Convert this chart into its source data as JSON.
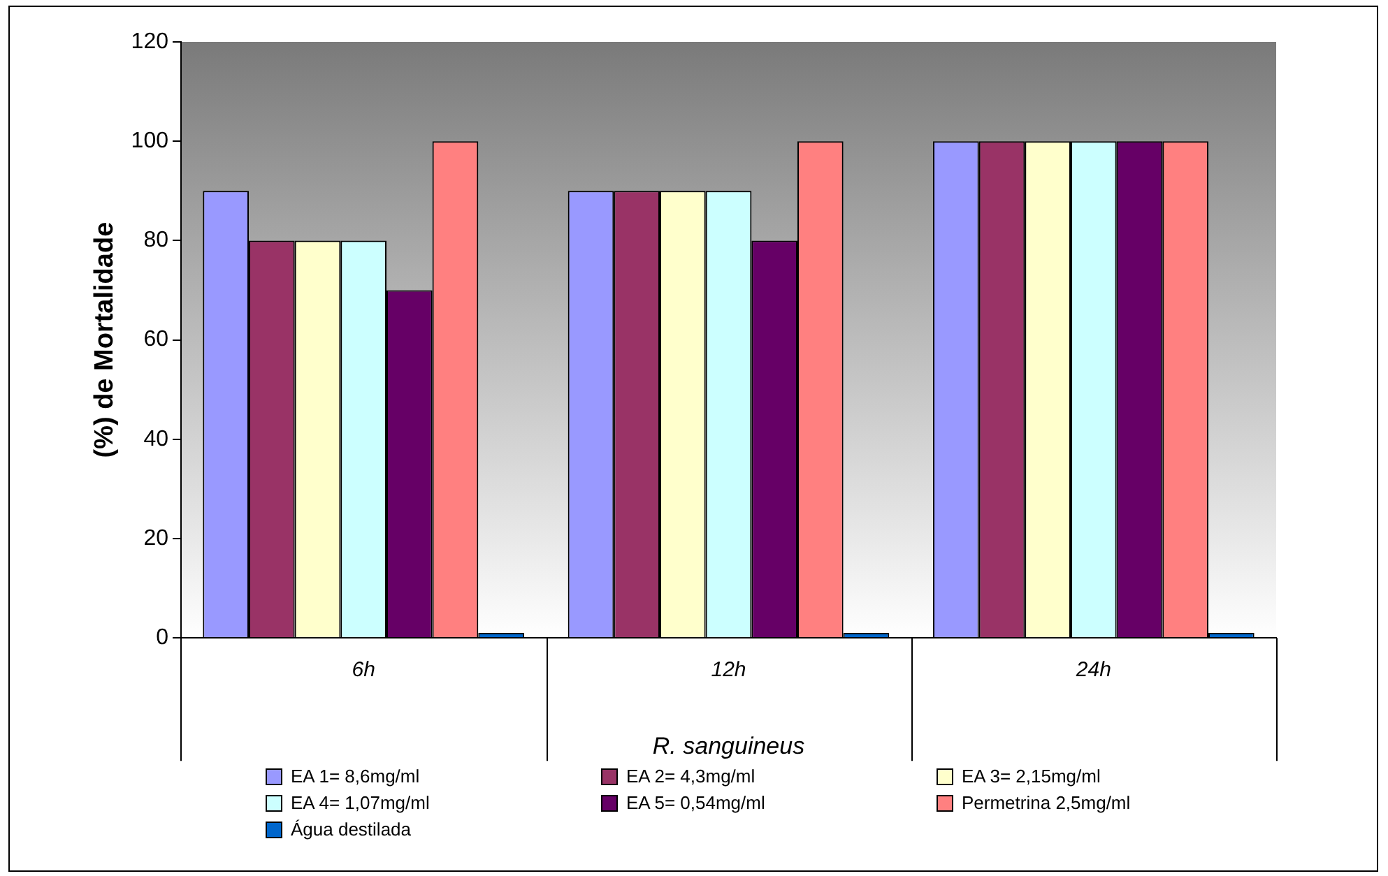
{
  "chart_data": {
    "type": "bar",
    "ylabel": "(%) de Mortalidade",
    "xlabel": "R. sanguineus",
    "categories": [
      "6h",
      "12h",
      "24h"
    ],
    "series": [
      {
        "name": "EA 1= 8,6mg/ml",
        "color": "#9999ff",
        "values": [
          90,
          90,
          100
        ]
      },
      {
        "name": "EA 2= 4,3mg/ml",
        "color": "#993366",
        "values": [
          80,
          90,
          100
        ]
      },
      {
        "name": "EA 3= 2,15mg/ml",
        "color": "#ffffcc",
        "values": [
          80,
          90,
          100
        ]
      },
      {
        "name": "EA 4= 1,07mg/ml",
        "color": "#ccffff",
        "values": [
          80,
          90,
          100
        ]
      },
      {
        "name": "EA 5= 0,54mg/ml",
        "color": "#660066",
        "values": [
          70,
          80,
          100
        ]
      },
      {
        "name": "Permetrina 2,5mg/ml",
        "color": "#ff8080",
        "values": [
          100,
          100,
          100
        ]
      },
      {
        "name": "Água destilada",
        "color": "#0066cc",
        "values": [
          1,
          1,
          1
        ]
      }
    ],
    "ylim": [
      0,
      120
    ],
    "yticks": [
      0,
      20,
      40,
      60,
      80,
      100,
      120
    ],
    "grid": false,
    "legend": "bottom"
  }
}
